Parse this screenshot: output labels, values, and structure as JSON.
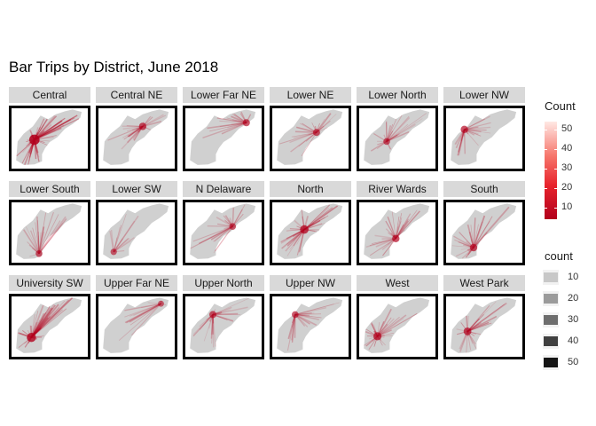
{
  "chart_data": {
    "type": "faceted-map",
    "title": "Bar Trips by District, June 2018",
    "facets": [
      {
        "label": "Central",
        "origin": [
          0.3,
          0.52
        ],
        "n": 60,
        "spread": 0.95,
        "intensity": 0.95
      },
      {
        "label": "Central NE",
        "origin": [
          0.58,
          0.3
        ],
        "n": 26,
        "spread": 0.55,
        "intensity": 0.55
      },
      {
        "label": "Lower Far NE",
        "origin": [
          0.8,
          0.24
        ],
        "n": 18,
        "spread": 0.4,
        "intensity": 0.5
      },
      {
        "label": "Lower NE",
        "origin": [
          0.58,
          0.4
        ],
        "n": 22,
        "spread": 0.55,
        "intensity": 0.5
      },
      {
        "label": "Lower North",
        "origin": [
          0.36,
          0.55
        ],
        "n": 24,
        "spread": 0.6,
        "intensity": 0.45
      },
      {
        "label": "Lower NW",
        "origin": [
          0.24,
          0.35
        ],
        "n": 24,
        "spread": 0.45,
        "intensity": 0.55
      },
      {
        "label": "Lower South",
        "origin": [
          0.36,
          0.85
        ],
        "n": 24,
        "spread": 0.75,
        "intensity": 0.45
      },
      {
        "label": "Lower SW",
        "origin": [
          0.2,
          0.82
        ],
        "n": 16,
        "spread": 0.7,
        "intensity": 0.4
      },
      {
        "label": "N Delaware",
        "origin": [
          0.62,
          0.4
        ],
        "n": 22,
        "spread": 0.55,
        "intensity": 0.45
      },
      {
        "label": "North",
        "origin": [
          0.42,
          0.45
        ],
        "n": 40,
        "spread": 0.75,
        "intensity": 0.7
      },
      {
        "label": "River Wards",
        "origin": [
          0.48,
          0.6
        ],
        "n": 30,
        "spread": 0.7,
        "intensity": 0.55
      },
      {
        "label": "South",
        "origin": [
          0.36,
          0.75
        ],
        "n": 28,
        "spread": 0.65,
        "intensity": 0.55
      },
      {
        "label": "University SW",
        "origin": [
          0.26,
          0.68
        ],
        "n": 46,
        "spread": 0.85,
        "intensity": 0.8
      },
      {
        "label": "Upper Far NE",
        "origin": [
          0.82,
          0.12
        ],
        "n": 14,
        "spread": 0.75,
        "intensity": 0.35
      },
      {
        "label": "Upper North",
        "origin": [
          0.36,
          0.3
        ],
        "n": 26,
        "spread": 0.6,
        "intensity": 0.5
      },
      {
        "label": "Upper NW",
        "origin": [
          0.3,
          0.3
        ],
        "n": 22,
        "spread": 0.65,
        "intensity": 0.45
      },
      {
        "label": "West",
        "origin": [
          0.24,
          0.66
        ],
        "n": 34,
        "spread": 0.75,
        "intensity": 0.65
      },
      {
        "label": "West Park",
        "origin": [
          0.28,
          0.58
        ],
        "n": 30,
        "spread": 0.7,
        "intensity": 0.6
      }
    ],
    "legend_color": {
      "title": "Count",
      "ticks": [
        10,
        20,
        30,
        40,
        50
      ],
      "range": [
        4,
        54
      ],
      "low_color": "#b2001c",
      "high_color": "#ffe8e4"
    },
    "legend_size": {
      "title": "count",
      "ticks": [
        10,
        20,
        30,
        40,
        50
      ],
      "shades": [
        "#c8c8c8",
        "#9b9b9b",
        "#6e6e6e",
        "#404040",
        "#141414"
      ]
    },
    "map_fill": "#d0d0d0",
    "trip_color": "#b2001c",
    "legend_position": "right"
  }
}
